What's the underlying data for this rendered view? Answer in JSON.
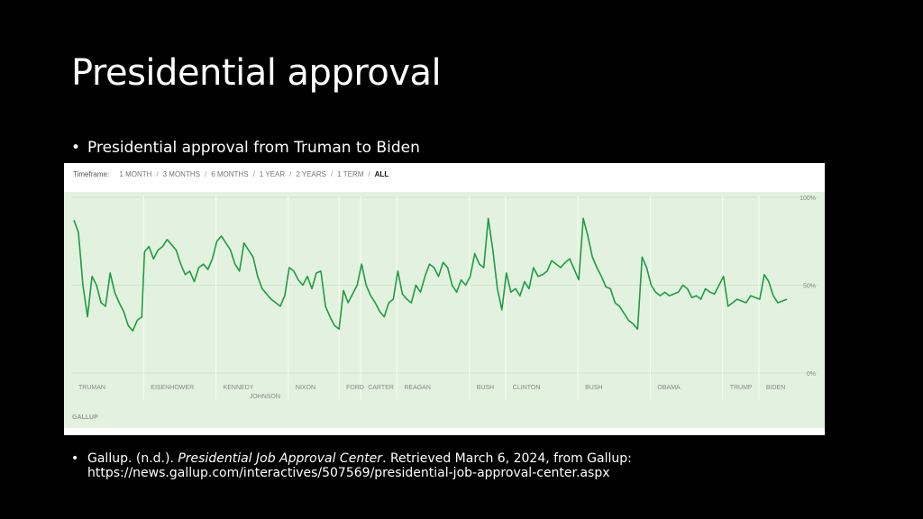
{
  "slide": {
    "title": "Presidential approval",
    "bullet1": "Presidential approval from Truman to Biden",
    "citation": {
      "prefix": "Gallup. (n.d.). ",
      "italic": "Presidential Job Approval Center",
      "suffix": ". Retrieved March 6, 2024, from Gallup:",
      "url": "https://news.gallup.com/interactives/507569/presidential-job-approval-center.aspx"
    }
  },
  "timeframe": {
    "label": "Timeframe:",
    "options": [
      "1 MONTH",
      "3 MONTHS",
      "6 MONTHS",
      "1 YEAR",
      "2 YEARS",
      "1 TERM",
      "ALL"
    ],
    "active": "ALL"
  },
  "colors": {
    "line": "#1e9c45",
    "background": "#e3f2de",
    "panel": "#ffffff"
  },
  "chart_data": {
    "type": "line",
    "y_ticks": [
      "100%",
      "50%",
      "0%"
    ],
    "ylim": [
      0,
      100
    ],
    "source_label": "GALLUP",
    "presidents": [
      "TRUMAN",
      "EISENHOWER",
      "KENNEDY",
      "JOHNSON",
      "NIXON",
      "FORD",
      "CARTER",
      "REAGAN",
      "BUSH",
      "CLINTON",
      "BUSH",
      "OBAMA",
      "TRUMP",
      "BIDEN"
    ],
    "president_ranges": [
      [
        1945.3,
        1953.0
      ],
      [
        1953.0,
        1961.0
      ],
      [
        1961.0,
        1963.9
      ],
      [
        1963.9,
        1969.0
      ],
      [
        1969.0,
        1974.6
      ],
      [
        1974.6,
        1977.0
      ],
      [
        1977.0,
        1981.0
      ],
      [
        1981.0,
        1989.0
      ],
      [
        1989.0,
        1993.0
      ],
      [
        1993.0,
        2001.0
      ],
      [
        2001.0,
        2009.0
      ],
      [
        2009.0,
        2017.0
      ],
      [
        2017.0,
        2021.0
      ],
      [
        2021.0,
        2024.2
      ]
    ],
    "x": [
      1945.3,
      1945.8,
      1946.3,
      1946.8,
      1947.3,
      1947.8,
      1948.3,
      1948.8,
      1949.3,
      1949.8,
      1950.3,
      1950.8,
      1951.3,
      1951.8,
      1952.3,
      1952.8,
      1953.1,
      1953.6,
      1954.1,
      1954.6,
      1955.1,
      1955.6,
      1956.1,
      1956.6,
      1957.1,
      1957.6,
      1958.1,
      1958.6,
      1959.1,
      1959.6,
      1960.1,
      1960.6,
      1961.1,
      1961.6,
      1962.1,
      1962.6,
      1963.1,
      1963.6,
      1964.1,
      1964.6,
      1965.1,
      1965.6,
      1966.1,
      1966.6,
      1967.1,
      1967.6,
      1968.1,
      1968.6,
      1969.1,
      1969.6,
      1970.1,
      1970.6,
      1971.1,
      1971.6,
      1972.1,
      1972.6,
      1973.1,
      1973.6,
      1974.1,
      1974.6,
      1975.1,
      1975.6,
      1976.1,
      1976.6,
      1977.1,
      1977.6,
      1978.1,
      1978.6,
      1979.1,
      1979.6,
      1980.1,
      1980.6,
      1981.1,
      1981.6,
      1982.1,
      1982.6,
      1983.1,
      1983.6,
      1984.1,
      1984.6,
      1985.1,
      1985.6,
      1986.1,
      1986.6,
      1987.1,
      1987.6,
      1988.1,
      1988.6,
      1989.1,
      1989.6,
      1990.1,
      1990.6,
      1991.1,
      1991.6,
      1992.1,
      1992.6,
      1993.1,
      1993.6,
      1994.1,
      1994.6,
      1995.1,
      1995.6,
      1996.1,
      1996.6,
      1997.1,
      1997.6,
      1998.1,
      1998.6,
      1999.1,
      1999.6,
      2000.1,
      2000.6,
      2001.1,
      2001.6,
      2002.1,
      2002.6,
      2003.1,
      2003.6,
      2004.1,
      2004.6,
      2005.1,
      2005.6,
      2006.1,
      2006.6,
      2007.1,
      2007.6,
      2008.1,
      2008.6,
      2009.1,
      2009.6,
      2010.1,
      2010.6,
      2011.1,
      2011.6,
      2012.1,
      2012.6,
      2013.1,
      2013.6,
      2014.1,
      2014.6,
      2015.1,
      2015.6,
      2016.1,
      2016.6,
      2017.1,
      2017.6,
      2018.1,
      2018.6,
      2019.1,
      2019.6,
      2020.1,
      2020.6,
      2021.1,
      2021.6,
      2022.1,
      2022.6,
      2023.1,
      2023.6,
      2024.1
    ],
    "y": [
      87,
      80,
      50,
      32,
      55,
      50,
      40,
      38,
      57,
      46,
      40,
      35,
      27,
      24,
      30,
      32,
      69,
      72,
      65,
      70,
      72,
      76,
      73,
      70,
      62,
      56,
      58,
      52,
      60,
      62,
      59,
      65,
      75,
      78,
      74,
      70,
      62,
      58,
      74,
      70,
      66,
      55,
      48,
      45,
      42,
      40,
      38,
      44,
      60,
      58,
      53,
      50,
      55,
      48,
      57,
      58,
      38,
      32,
      27,
      25,
      47,
      40,
      45,
      50,
      62,
      50,
      44,
      40,
      35,
      32,
      40,
      42,
      58,
      45,
      42,
      40,
      50,
      46,
      55,
      62,
      60,
      55,
      63,
      60,
      50,
      46,
      53,
      50,
      55,
      68,
      62,
      60,
      88,
      70,
      48,
      36,
      57,
      46,
      48,
      44,
      52,
      48,
      60,
      55,
      56,
      58,
      64,
      62,
      60,
      63,
      65,
      59,
      53,
      88,
      78,
      66,
      60,
      55,
      49,
      48,
      40,
      38,
      34,
      30,
      28,
      25,
      66,
      60,
      50,
      46,
      44,
      46,
      44,
      45,
      46,
      50,
      48,
      43,
      44,
      42,
      48,
      46,
      45,
      50,
      55,
      38,
      40,
      42,
      41,
      40,
      44,
      43,
      42,
      56,
      52,
      44,
      40,
      41,
      42
    ]
  }
}
